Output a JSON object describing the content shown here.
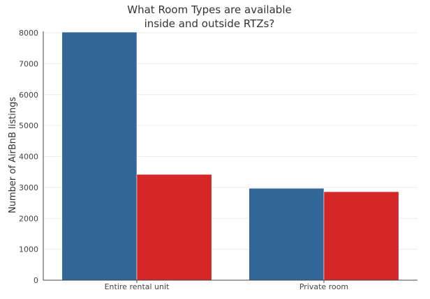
{
  "chart_data": {
    "type": "bar",
    "title_lines": [
      "What Room Types are available",
      "inside and outside RTZs?"
    ],
    "xlabel": "",
    "ylabel": "Number of AirBnB listings",
    "categories": [
      "Entire rental unit",
      "Private room"
    ],
    "series": [
      {
        "values": [
          8020,
          2970
        ],
        "color": "#336699"
      },
      {
        "values": [
          3420,
          2860
        ],
        "color": "#d62728"
      }
    ],
    "yticks": [
      0,
      1000,
      2000,
      3000,
      4000,
      5000,
      6000,
      7000,
      8000
    ],
    "ylim": [
      0,
      8000
    ],
    "grid": true,
    "legend": "none"
  }
}
